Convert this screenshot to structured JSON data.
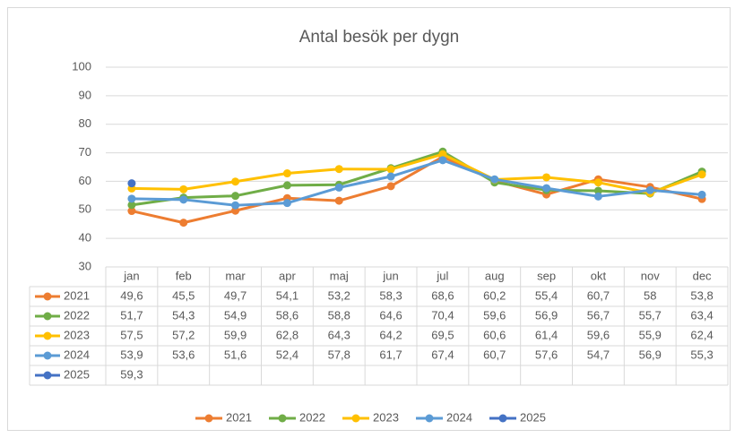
{
  "chart_data": {
    "type": "line",
    "title": "Antal besök per dygn",
    "categories": [
      "jan",
      "feb",
      "mar",
      "apr",
      "maj",
      "jun",
      "jul",
      "aug",
      "sep",
      "okt",
      "nov",
      "dec"
    ],
    "series": [
      {
        "name": "2021",
        "color": "#ed7d31",
        "values": [
          49.6,
          45.5,
          49.7,
          54.1,
          53.2,
          58.3,
          68.6,
          60.2,
          55.4,
          60.7,
          58,
          53.8
        ],
        "value_labels": [
          "49,6",
          "45,5",
          "49,7",
          "54,1",
          "53,2",
          "58,3",
          "68,6",
          "60,2",
          "55,4",
          "60,7",
          "58",
          "53,8"
        ]
      },
      {
        "name": "2022",
        "color": "#70ad47",
        "values": [
          51.7,
          54.3,
          54.9,
          58.6,
          58.8,
          64.6,
          70.4,
          59.6,
          56.9,
          56.7,
          55.7,
          63.4
        ],
        "value_labels": [
          "51,7",
          "54,3",
          "54,9",
          "58,6",
          "58,8",
          "64,6",
          "70,4",
          "59,6",
          "56,9",
          "56,7",
          "55,7",
          "63,4"
        ]
      },
      {
        "name": "2023",
        "color": "#ffc000",
        "values": [
          57.5,
          57.2,
          59.9,
          62.8,
          64.3,
          64.2,
          69.5,
          60.6,
          61.4,
          59.6,
          55.9,
          62.4
        ],
        "value_labels": [
          "57,5",
          "57,2",
          "59,9",
          "62,8",
          "64,3",
          "64,2",
          "69,5",
          "60,6",
          "61,4",
          "59,6",
          "55,9",
          "62,4"
        ]
      },
      {
        "name": "2024",
        "color": "#5b9bd5",
        "values": [
          53.9,
          53.6,
          51.6,
          52.4,
          57.8,
          61.7,
          67.4,
          60.7,
          57.6,
          54.7,
          56.9,
          55.3
        ],
        "value_labels": [
          "53,9",
          "53,6",
          "51,6",
          "52,4",
          "57,8",
          "61,7",
          "67,4",
          "60,7",
          "57,6",
          "54,7",
          "56,9",
          "55,3"
        ]
      },
      {
        "name": "2025",
        "color": "#4472c4",
        "values": [
          59.3,
          null,
          null,
          null,
          null,
          null,
          null,
          null,
          null,
          null,
          null,
          null
        ],
        "value_labels": [
          "59,3",
          null,
          null,
          null,
          null,
          null,
          null,
          null,
          null,
          null,
          null,
          null
        ]
      }
    ],
    "ylim": [
      30,
      100
    ],
    "yticks": [
      30,
      40,
      50,
      60,
      70,
      80,
      90,
      100
    ],
    "grid": true,
    "legend": "bottom"
  }
}
